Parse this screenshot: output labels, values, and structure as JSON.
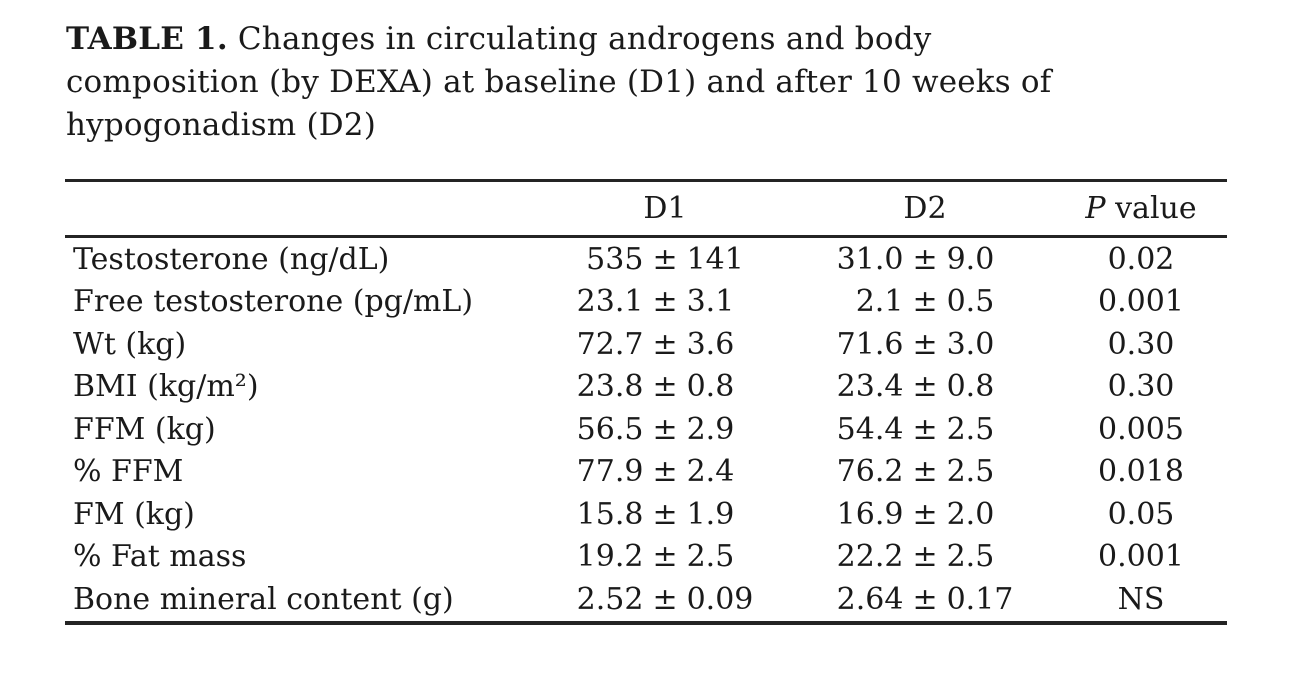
{
  "colors": {
    "background": "#ffffff",
    "text": "#1a1a1a",
    "rule": "#242424"
  },
  "caption": {
    "label": "TABLE 1.",
    "line1": "Changes in circulating androgens and body",
    "line2": "composition (by DEXA) at baseline (D1) and after 10 weeks of",
    "line3": "hypogonadism (D2)"
  },
  "table": {
    "pm": "±",
    "header": {
      "col_label": "",
      "d1": "D1",
      "d2": "D2",
      "p_italic": "P",
      "p_rest": "value"
    },
    "rows": [
      {
        "label": "Testosterone (ng/dL)",
        "d1_mean": "535",
        "d1_sd": "141",
        "d2_mean": "31.0",
        "d2_sd": "9.0",
        "p": "0.02"
      },
      {
        "label": "Free testosterone (pg/mL)",
        "d1_mean": "23.1",
        "d1_sd": "3.1",
        "d2_mean": "2.1",
        "d2_sd": "0.5",
        "p": "0.001"
      },
      {
        "label": "Wt (kg)",
        "d1_mean": "72.7",
        "d1_sd": "3.6",
        "d2_mean": "71.6",
        "d2_sd": "3.0",
        "p": "0.30"
      },
      {
        "label": "BMI (kg/m²)",
        "d1_mean": "23.8",
        "d1_sd": "0.8",
        "d2_mean": "23.4",
        "d2_sd": "0.8",
        "p": "0.30"
      },
      {
        "label": "FFM (kg)",
        "d1_mean": "56.5",
        "d1_sd": "2.9",
        "d2_mean": "54.4",
        "d2_sd": "2.5",
        "p": "0.005"
      },
      {
        "label": "% FFM",
        "d1_mean": "77.9",
        "d1_sd": "2.4",
        "d2_mean": "76.2",
        "d2_sd": "2.5",
        "p": "0.018"
      },
      {
        "label": "FM (kg)",
        "d1_mean": "15.8",
        "d1_sd": "1.9",
        "d2_mean": "16.9",
        "d2_sd": "2.0",
        "p": "0.05"
      },
      {
        "label": "% Fat mass",
        "d1_mean": "19.2",
        "d1_sd": "2.5",
        "d2_mean": "22.2",
        "d2_sd": "2.5",
        "p": "0.001"
      },
      {
        "label": "Bone mineral content (g)",
        "d1_mean": "2.52",
        "d1_sd": "0.09",
        "d2_mean": "2.64",
        "d2_sd": "0.17",
        "p": "NS"
      }
    ]
  }
}
